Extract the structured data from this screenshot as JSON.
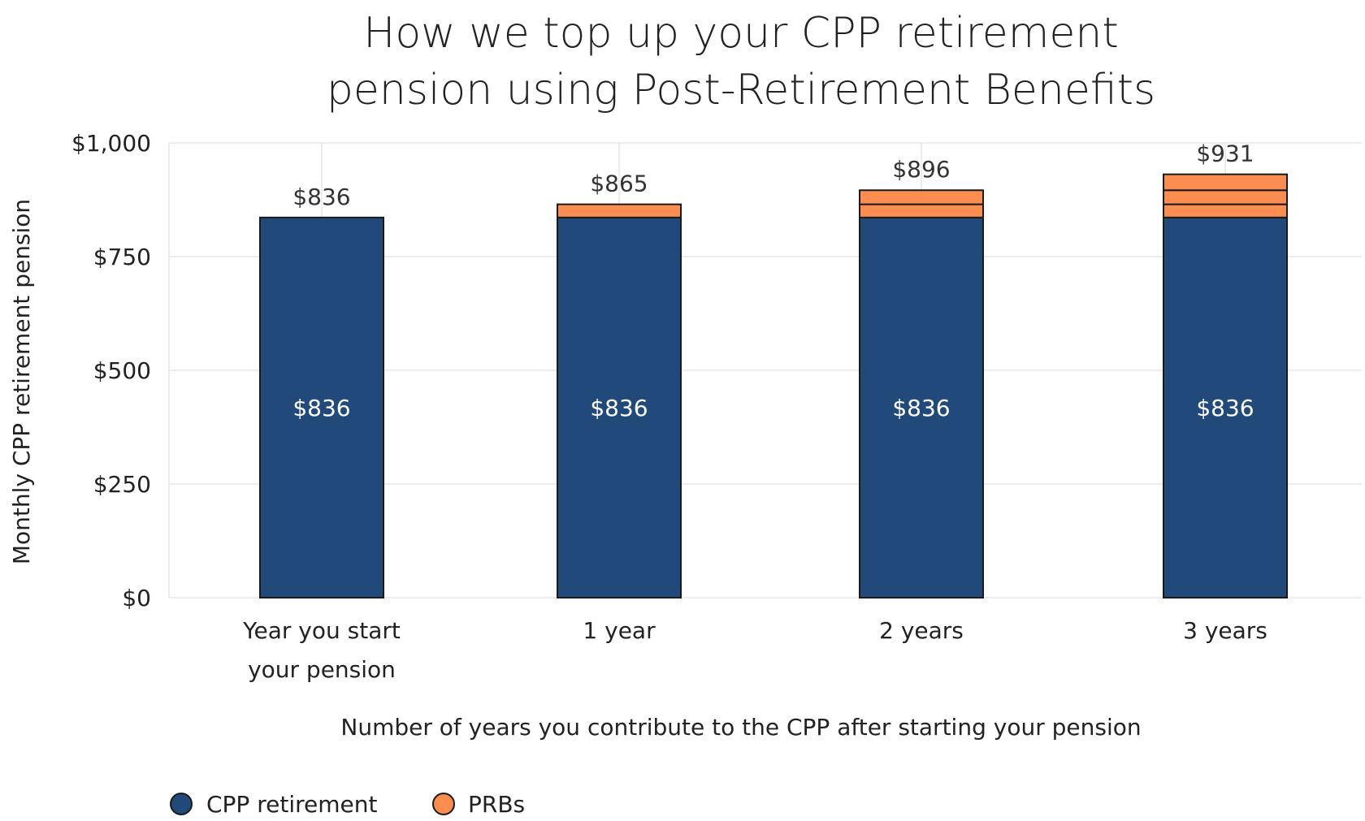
{
  "colors": {
    "cpp": "#214a7b",
    "prb": "#fc8d50",
    "outline": "#1a1a1a"
  },
  "chart_data": {
    "type": "bar",
    "stacked": true,
    "title": [
      "How we top up your CPP retirement",
      "pension using Post-Retirement Benefits"
    ],
    "xlabel": "Number of years you contribute to the CPP after starting your pension",
    "ylabel": "Monthly CPP retirement pension",
    "ylim": [
      0,
      1000
    ],
    "yticks": [
      0,
      250,
      500,
      750,
      1000
    ],
    "ytick_labels": [
      "$0",
      "$250",
      "$500",
      "$750",
      "$1,000"
    ],
    "categories": [
      [
        "Year you start",
        "your pension"
      ],
      [
        "1 year"
      ],
      [
        "2 years"
      ],
      [
        "3 years"
      ]
    ],
    "series": [
      {
        "name": "CPP retirement",
        "values": [
          836,
          836,
          836,
          836
        ],
        "labels": [
          "$836",
          "$836",
          "$836",
          "$836"
        ]
      },
      {
        "name": "PRBs",
        "segments": [
          [],
          [
            29
          ],
          [
            29,
            31
          ],
          [
            29,
            31,
            35
          ]
        ]
      }
    ],
    "totals": [
      836,
      865,
      896,
      931
    ],
    "total_labels": [
      "$836",
      "$865",
      "$896",
      "$931"
    ],
    "grid": true,
    "legend_position": "bottom-left"
  }
}
